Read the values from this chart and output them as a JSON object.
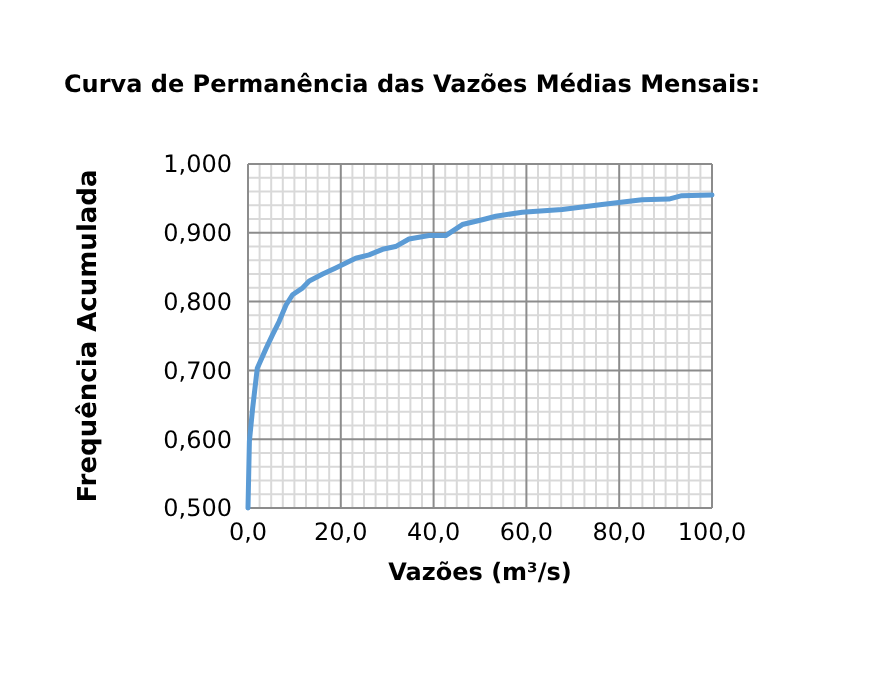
{
  "chart_data": {
    "type": "line",
    "title": "Curva de Permanência das Vazões Médias Mensais:",
    "xlabel": "Vazões (m³/s)",
    "ylabel": "Frequência Acumulada",
    "series": [
      {
        "color": "#5b9bd5",
        "x": [
          0,
          0.3,
          1,
          2,
          3.9,
          5.3,
          6.7,
          8.2,
          9.6,
          11.8,
          13.2,
          16.1,
          18.9,
          23.2,
          26.1,
          29,
          31.8,
          34.7,
          39,
          42.6,
          46.2,
          50.5,
          53.4,
          59.1,
          67.7,
          76.3,
          84.9,
          90.7,
          93.5,
          100
        ],
        "values": [
          0.5,
          0.597,
          0.645,
          0.703,
          0.732,
          0.752,
          0.771,
          0.795,
          0.81,
          0.82,
          0.83,
          0.84,
          0.849,
          0.863,
          0.868,
          0.876,
          0.88,
          0.891,
          0.896,
          0.896,
          0.912,
          0.919,
          0.924,
          0.93,
          0.934,
          0.941,
          0.948,
          0.949,
          0.954,
          0.955
        ]
      }
    ],
    "xlim": [
      0,
      100
    ],
    "ylim": [
      0.5,
      1
    ],
    "xticks": [
      {
        "value": 0,
        "label": "0,0"
      },
      {
        "value": 20,
        "label": "20,0"
      },
      {
        "value": 40,
        "label": "40,0"
      },
      {
        "value": 60,
        "label": "60,0"
      },
      {
        "value": 80,
        "label": "80,0"
      },
      {
        "value": 100,
        "label": "100,0"
      }
    ],
    "yticks": [
      {
        "value": 0.5,
        "label": "0,500"
      },
      {
        "value": 0.6,
        "label": "0,600"
      },
      {
        "value": 0.7,
        "label": "0,700"
      },
      {
        "value": 0.8,
        "label": "0,800"
      },
      {
        "value": 0.9,
        "label": "0,900"
      },
      {
        "value": 1,
        "label": "1,000"
      }
    ],
    "grid": true,
    "marker": "none",
    "line_style": "solid"
  }
}
